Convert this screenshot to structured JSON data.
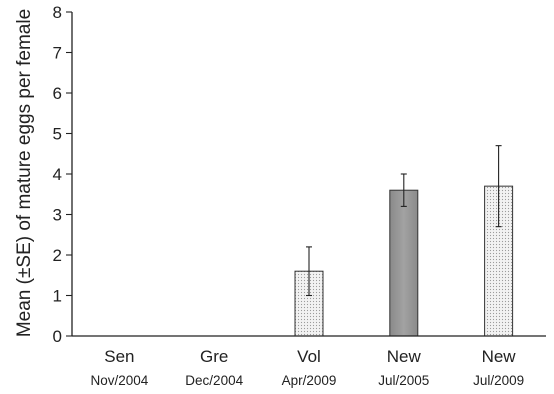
{
  "chart_data": {
    "type": "bar",
    "ylabel": "Mean (±SE) of mature eggs per female",
    "ylim": [
      0,
      8
    ],
    "yticks": [
      0,
      1,
      2,
      3,
      4,
      5,
      6,
      7,
      8
    ],
    "grid": false,
    "categories": [
      {
        "label": "Sen",
        "sublabel": "Nov/2004"
      },
      {
        "label": "Gre",
        "sublabel": "Dec/2004"
      },
      {
        "label": "Vol",
        "sublabel": "Apr/2009"
      },
      {
        "label": "New",
        "sublabel": "Jul/2005"
      },
      {
        "label": "New",
        "sublabel": "Jul/2009"
      }
    ],
    "values": [
      0,
      0,
      1.6,
      3.6,
      3.7
    ],
    "errors": [
      0,
      0,
      0.6,
      0.4,
      1.0
    ],
    "bar_fills": [
      "light-dotted",
      "light-dotted",
      "light-dotted",
      "dark-gray",
      "light-dotted"
    ]
  }
}
